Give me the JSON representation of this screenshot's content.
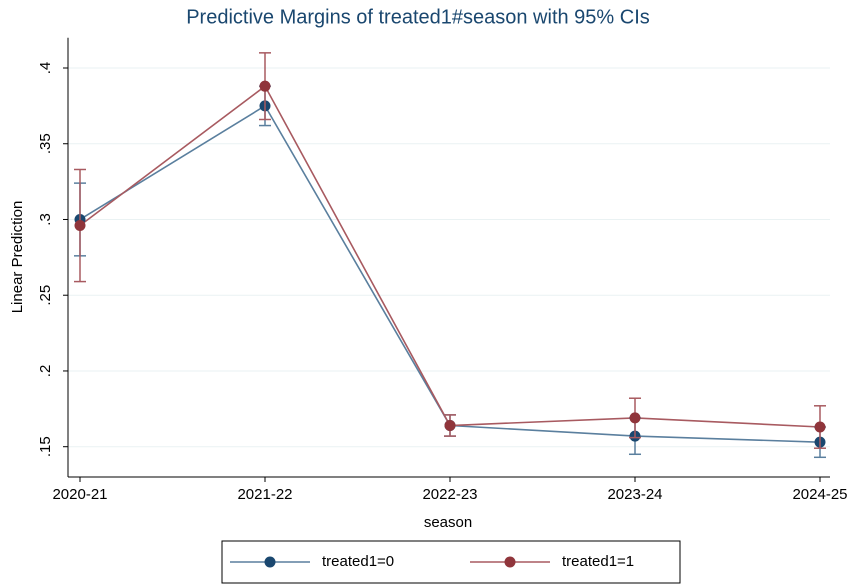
{
  "chart_data": {
    "type": "line",
    "title": "Predictive Margins of treated1#season with 95% CIs",
    "x_label": "season",
    "y_label": "Linear Prediction",
    "categories": [
      "2020-21",
      "2021-22",
      "2022-23",
      "2023-24",
      "2024-25"
    ],
    "series": [
      {
        "name": "treated1=0",
        "color": "#1a476f",
        "line_color": "#5a7f9e",
        "values": [
          0.3,
          0.375,
          0.164,
          0.157,
          0.153
        ],
        "errors": [
          0.024,
          0.013,
          0.007,
          0.012,
          0.01
        ]
      },
      {
        "name": "treated1=1",
        "color": "#90353b",
        "line_color": "#a85a60",
        "values": [
          0.296,
          0.388,
          0.164,
          0.169,
          0.163
        ],
        "errors": [
          0.037,
          0.022,
          0.007,
          0.013,
          0.014
        ]
      }
    ],
    "ylim": [
      0.13,
      0.42
    ],
    "yticks": [
      {
        "value": 0.15,
        "label": ".15"
      },
      {
        "value": 0.2,
        "label": ".2"
      },
      {
        "value": 0.25,
        "label": ".25"
      },
      {
        "value": 0.3,
        "label": ".3"
      },
      {
        "value": 0.35,
        "label": ".35"
      },
      {
        "value": 0.4,
        "label": ".4"
      }
    ],
    "grid": true
  }
}
